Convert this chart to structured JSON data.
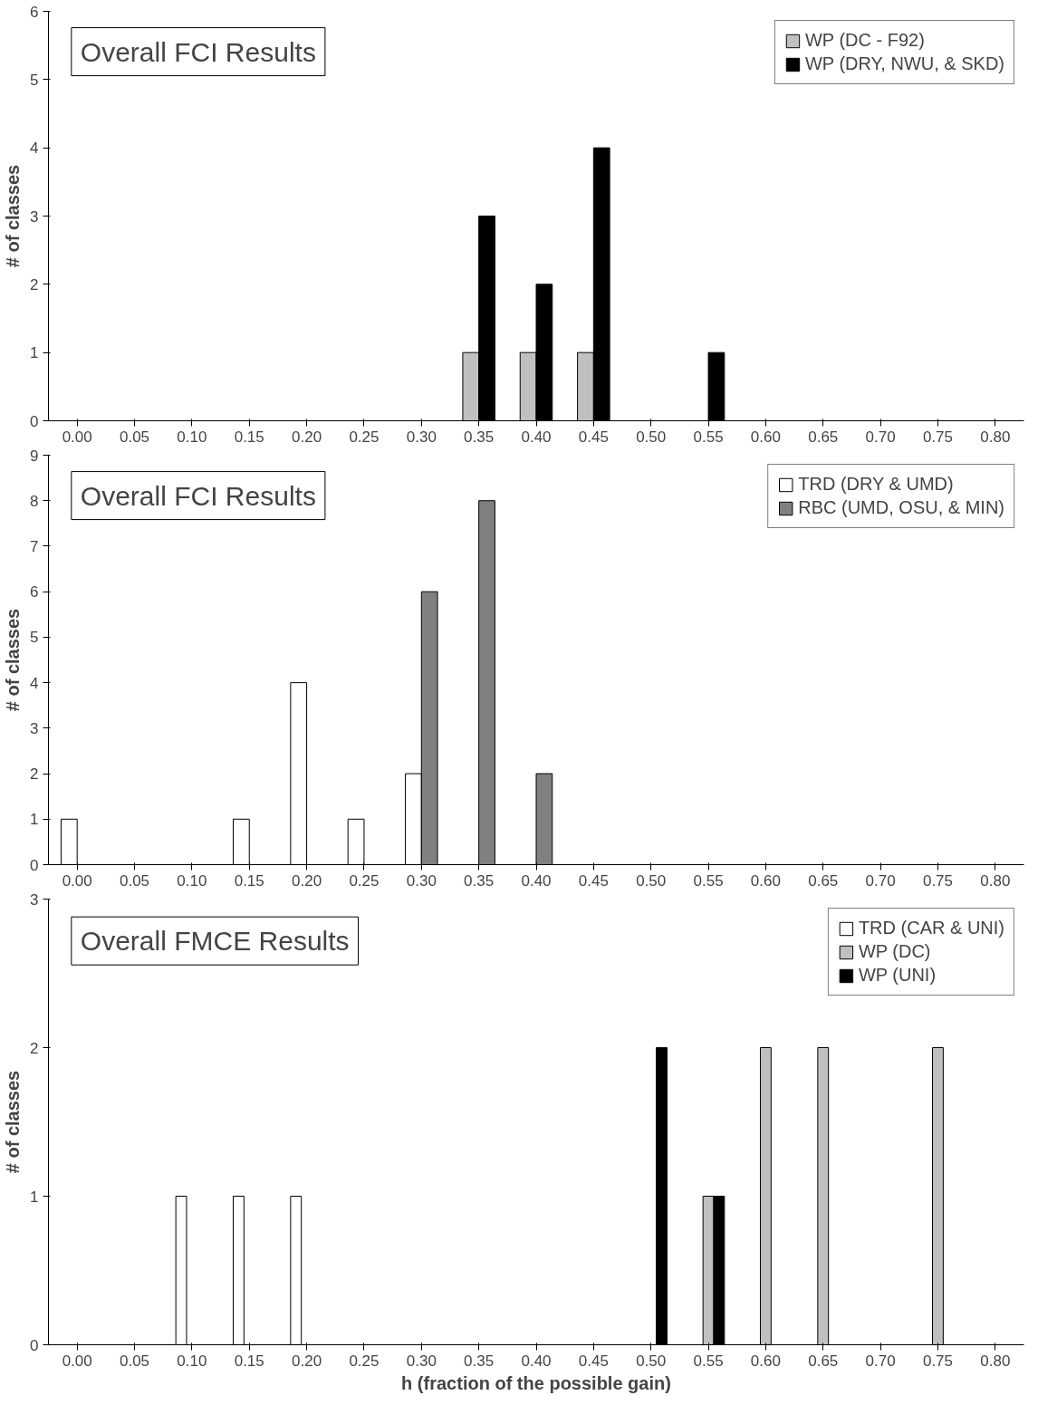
{
  "chart_data": [
    {
      "type": "bar",
      "title": "Overall FCI Results",
      "ylabel": "# of classes",
      "categories": [
        "0.00",
        "0.05",
        "0.10",
        "0.15",
        "0.20",
        "0.25",
        "0.30",
        "0.35",
        "0.40",
        "0.45",
        "0.50",
        "0.55",
        "0.60",
        "0.65",
        "0.70",
        "0.75",
        "0.80"
      ],
      "series": [
        {
          "name": "WP (DC - F92)",
          "color": "#c0c0c0",
          "values": [
            null,
            null,
            null,
            null,
            null,
            null,
            null,
            1,
            1,
            1,
            null,
            null,
            null,
            null,
            null,
            null,
            null
          ]
        },
        {
          "name": "WP (DRY, NWU, & SKD)",
          "color": "#000000",
          "values": [
            null,
            null,
            null,
            null,
            null,
            null,
            null,
            3,
            2,
            4,
            null,
            1,
            null,
            null,
            null,
            null,
            null
          ]
        }
      ],
      "ylim": [
        0,
        6
      ],
      "yticks": [
        0,
        1,
        2,
        3,
        4,
        5,
        6
      ],
      "legend": "top right"
    },
    {
      "type": "bar",
      "title": "Overall FCI Results",
      "ylabel": "# of classes",
      "categories": [
        "0.00",
        "0.05",
        "0.10",
        "0.15",
        "0.20",
        "0.25",
        "0.30",
        "0.35",
        "0.40",
        "0.45",
        "0.50",
        "0.55",
        "0.60",
        "0.65",
        "0.70",
        "0.75",
        "0.80"
      ],
      "series": [
        {
          "name": "TRD (DRY & UMD)",
          "color": "#ffffff",
          "values": [
            1,
            null,
            null,
            1,
            4,
            1,
            2,
            null,
            null,
            null,
            null,
            null,
            null,
            null,
            null,
            null,
            null
          ]
        },
        {
          "name": "RBC (UMD, OSU, & MIN)",
          "color": "#808080",
          "values": [
            null,
            null,
            null,
            null,
            null,
            null,
            6,
            8,
            2,
            null,
            null,
            null,
            null,
            null,
            null,
            null,
            null
          ]
        }
      ],
      "ylim": [
        0,
        9
      ],
      "yticks": [
        0,
        1,
        2,
        3,
        4,
        5,
        6,
        7,
        8,
        9
      ],
      "legend": "top right"
    },
    {
      "type": "bar",
      "title": "Overall FMCE Results",
      "ylabel": "# of classes",
      "xlabel": "h (fraction of the possible gain)",
      "categories": [
        "0.00",
        "0.05",
        "0.10",
        "0.15",
        "0.20",
        "0.25",
        "0.30",
        "0.35",
        "0.40",
        "0.45",
        "0.50",
        "0.55",
        "0.60",
        "0.65",
        "0.70",
        "0.75",
        "0.80"
      ],
      "series": [
        {
          "name": "TRD (CAR & UNI)",
          "color": "#ffffff",
          "values": [
            null,
            null,
            1,
            1,
            1,
            null,
            null,
            null,
            null,
            null,
            null,
            null,
            null,
            null,
            null,
            null,
            null
          ]
        },
        {
          "name": "WP (DC)",
          "color": "#c0c0c0",
          "values": [
            null,
            null,
            null,
            null,
            null,
            null,
            null,
            null,
            null,
            null,
            null,
            1,
            2,
            2,
            null,
            2,
            null
          ]
        },
        {
          "name": "WP (UNI)",
          "color": "#000000",
          "values": [
            null,
            null,
            null,
            null,
            null,
            null,
            null,
            null,
            null,
            null,
            2,
            1,
            null,
            null,
            null,
            null,
            null
          ]
        }
      ],
      "ylim": [
        0,
        3
      ],
      "yticks": [
        0,
        1,
        2,
        3
      ],
      "legend": "top right"
    }
  ]
}
